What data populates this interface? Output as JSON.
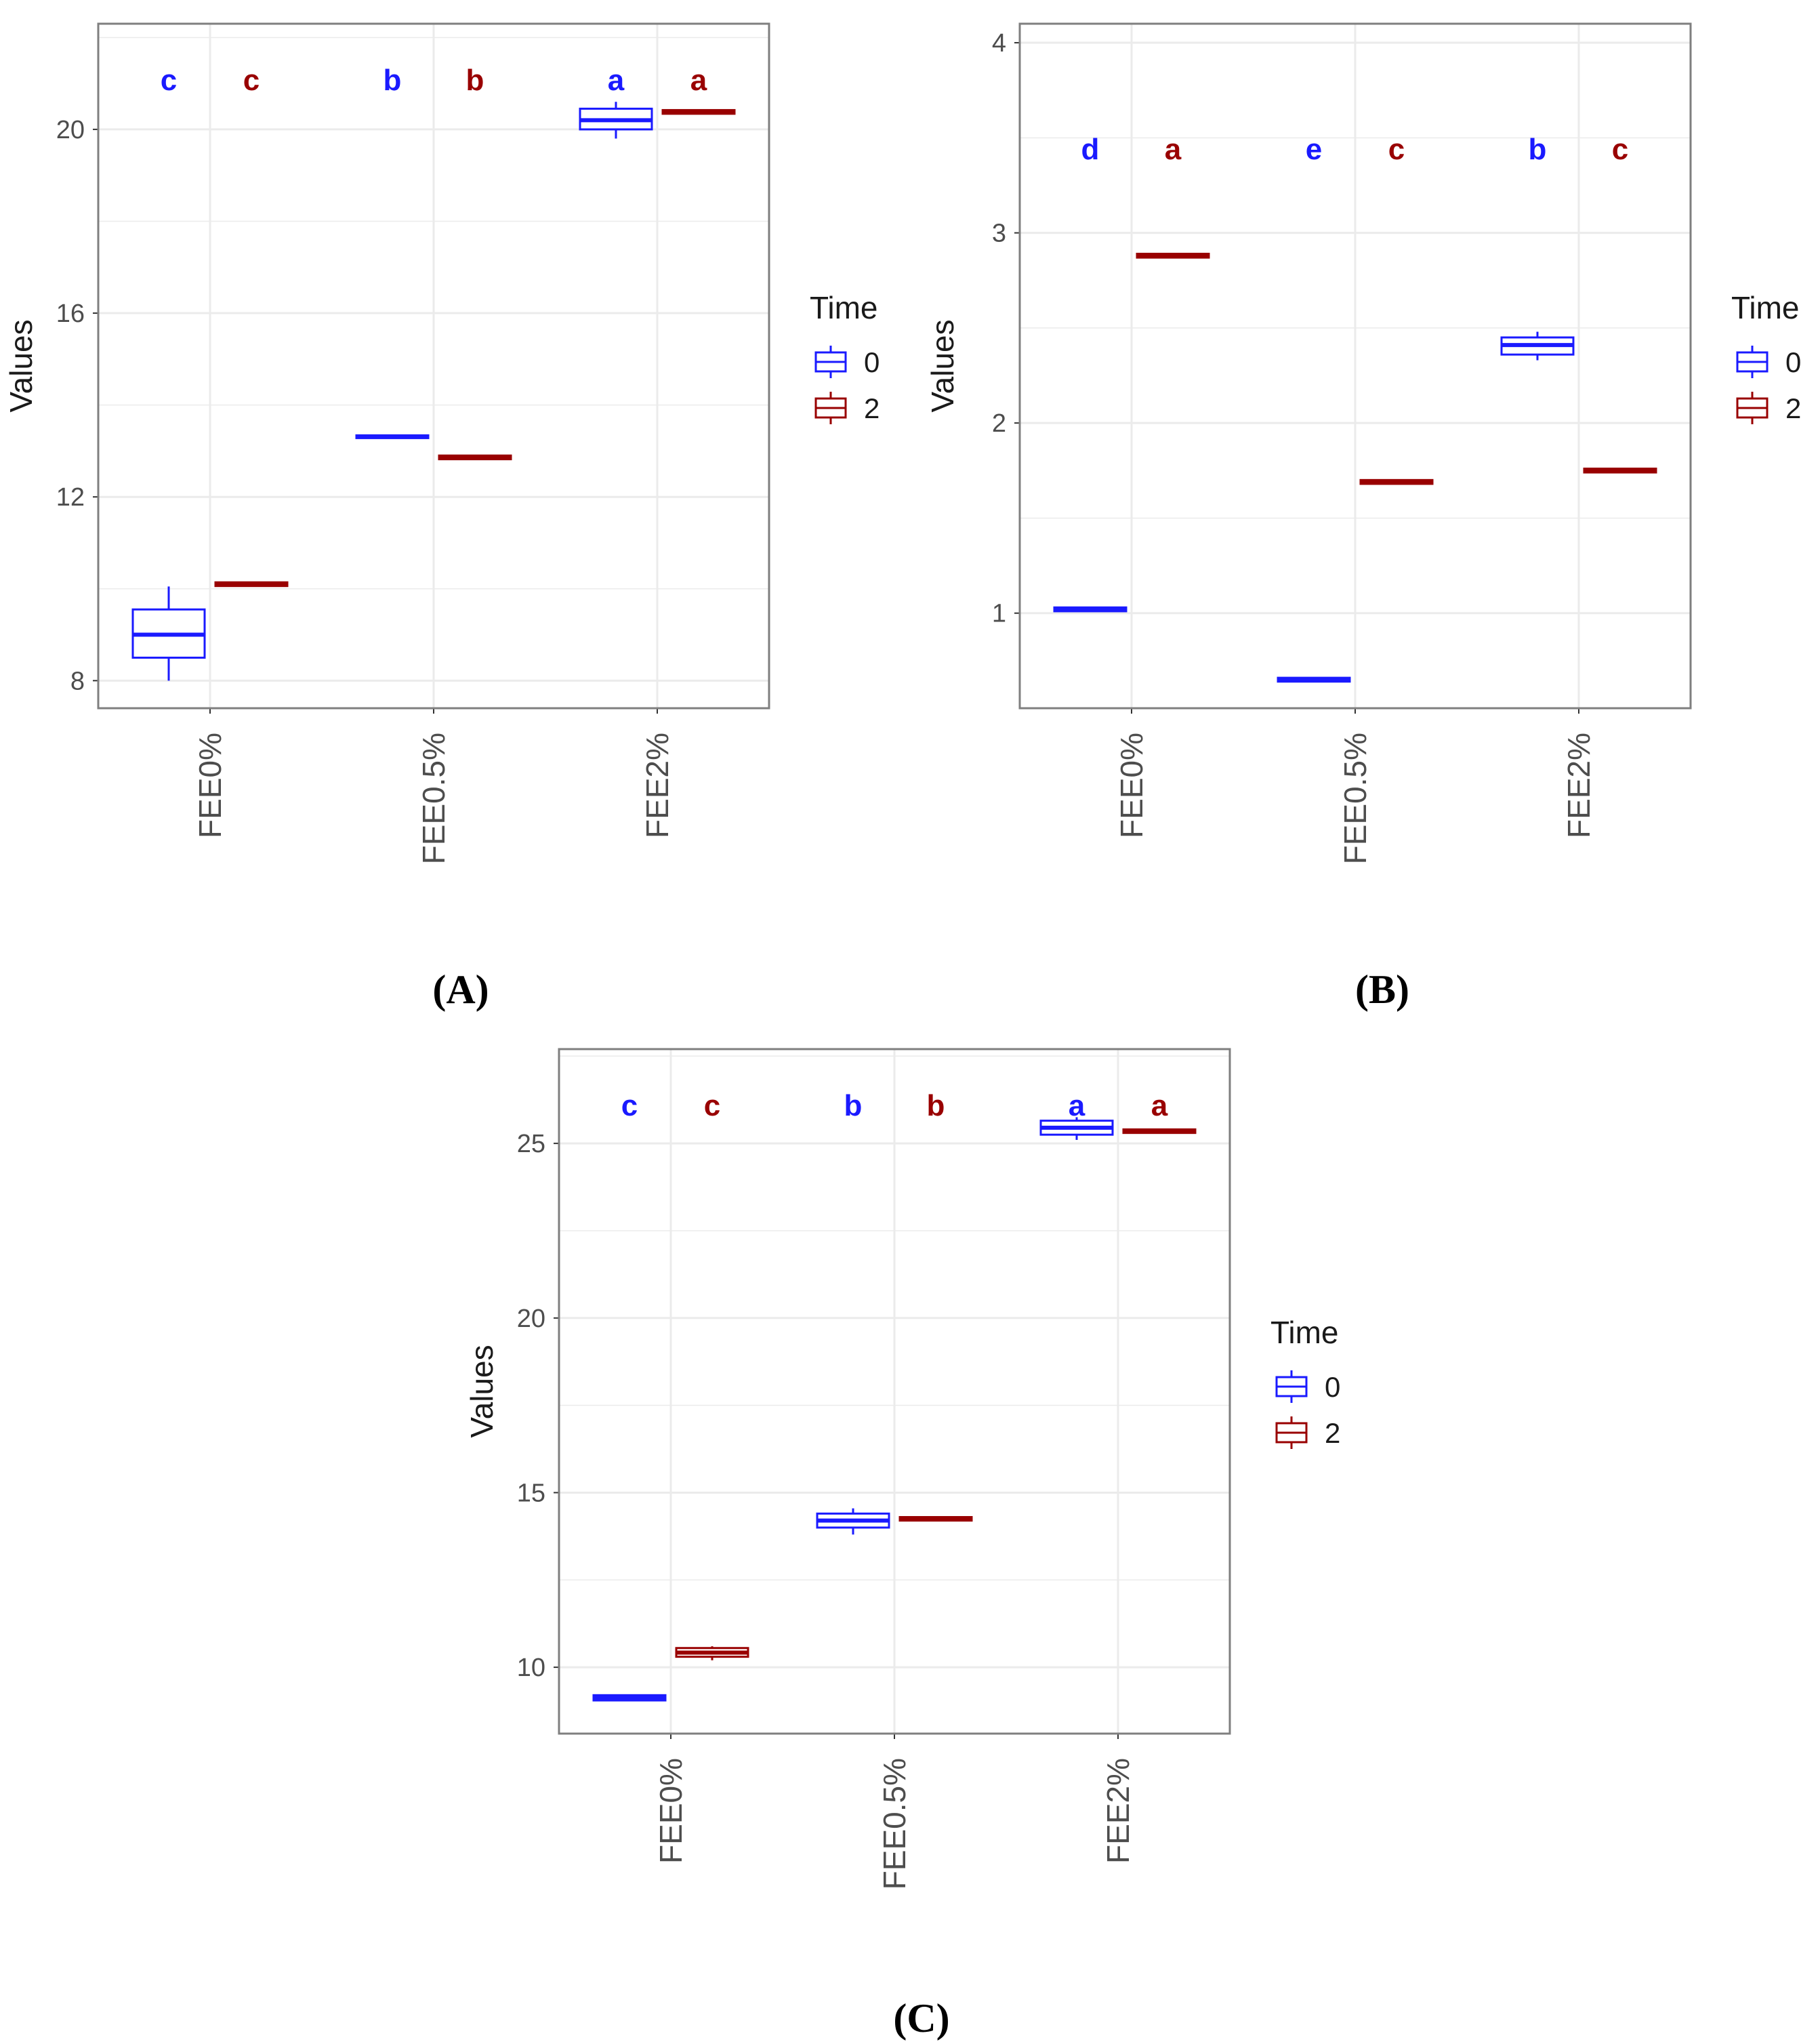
{
  "colors": {
    "time0": "#1a1aff",
    "time2": "#990000",
    "grid": "#ebebeb",
    "panel_border": "#7f7f7f",
    "tick_text": "#4d4d4d"
  },
  "chart_data": [
    {
      "type": "boxplot",
      "caption": "(A)",
      "ylabel": "Values",
      "xlabel": "",
      "categories": [
        "FEE0%",
        "FEE0.5%",
        "FEE2%"
      ],
      "yticks": [
        8,
        12,
        16,
        20
      ],
      "ylim": [
        7.4,
        22.3
      ],
      "legend": {
        "title": "Time",
        "entries": [
          "0",
          "2"
        ],
        "position": "right"
      },
      "series": [
        {
          "name": "0",
          "boxes": [
            {
              "min": 8.0,
              "q1": 8.5,
              "median": 9.0,
              "q3": 9.55,
              "max": 10.05
            },
            {
              "min": 13.28,
              "q1": 13.28,
              "median": 13.31,
              "q3": 13.34,
              "max": 13.34
            },
            {
              "min": 19.8,
              "q1": 20.0,
              "median": 20.2,
              "q3": 20.45,
              "max": 20.6
            }
          ],
          "letters": [
            "c",
            "b",
            "a"
          ]
        },
        {
          "name": "2",
          "boxes": [
            {
              "min": 10.06,
              "q1": 10.06,
              "median": 10.1,
              "q3": 10.14,
              "max": 10.14
            },
            {
              "min": 12.82,
              "q1": 12.82,
              "median": 12.86,
              "q3": 12.9,
              "max": 12.9
            },
            {
              "min": 20.34,
              "q1": 20.34,
              "median": 20.38,
              "q3": 20.42,
              "max": 20.42
            }
          ],
          "letters": [
            "c",
            "b",
            "a"
          ]
        }
      ]
    },
    {
      "type": "boxplot",
      "caption": "(B)",
      "ylabel": "Values",
      "xlabel": "",
      "categories": [
        "FEE0%",
        "FEE0.5%",
        "FEE2%"
      ],
      "yticks": [
        1,
        2,
        3,
        4
      ],
      "ylim": [
        0.5,
        4.1
      ],
      "legend": {
        "title": "Time",
        "entries": [
          "0",
          "2"
        ],
        "position": "right"
      },
      "series": [
        {
          "name": "0",
          "boxes": [
            {
              "min": 1.01,
              "q1": 1.01,
              "median": 1.02,
              "q3": 1.03,
              "max": 1.03
            },
            {
              "min": 0.64,
              "q1": 0.64,
              "median": 0.65,
              "q3": 0.66,
              "max": 0.66
            },
            {
              "min": 2.33,
              "q1": 2.36,
              "median": 2.41,
              "q3": 2.45,
              "max": 2.48
            }
          ],
          "letters": [
            "d",
            "e",
            "b"
          ]
        },
        {
          "name": "2",
          "boxes": [
            {
              "min": 2.87,
              "q1": 2.87,
              "median": 2.88,
              "q3": 2.89,
              "max": 2.89
            },
            {
              "min": 1.68,
              "q1": 1.68,
              "median": 1.69,
              "q3": 1.7,
              "max": 1.7
            },
            {
              "min": 1.74,
              "q1": 1.74,
              "median": 1.75,
              "q3": 1.76,
              "max": 1.76
            }
          ],
          "letters": [
            "a",
            "c",
            "c"
          ]
        }
      ]
    },
    {
      "type": "boxplot",
      "caption": "(C)",
      "ylabel": "Values",
      "xlabel": "",
      "categories": [
        "FEE0%",
        "FEE0.5%",
        "FEE2%"
      ],
      "yticks": [
        10,
        15,
        20,
        25
      ],
      "ylim": [
        8.1,
        27.7
      ],
      "legend": {
        "title": "Time",
        "entries": [
          "0",
          "2"
        ],
        "position": "right"
      },
      "series": [
        {
          "name": "0",
          "boxes": [
            {
              "min": 9.05,
              "q1": 9.05,
              "median": 9.13,
              "q3": 9.2,
              "max": 9.2
            },
            {
              "min": 13.8,
              "q1": 14.0,
              "median": 14.2,
              "q3": 14.4,
              "max": 14.55
            },
            {
              "min": 25.1,
              "q1": 25.25,
              "median": 25.45,
              "q3": 25.65,
              "max": 25.75
            }
          ],
          "letters": [
            "c",
            "b",
            "a"
          ]
        },
        {
          "name": "2",
          "boxes": [
            {
              "min": 10.2,
              "q1": 10.3,
              "median": 10.42,
              "q3": 10.55,
              "max": 10.6
            },
            {
              "min": 14.2,
              "q1": 14.2,
              "median": 14.25,
              "q3": 14.3,
              "max": 14.3
            },
            {
              "min": 25.3,
              "q1": 25.3,
              "median": 25.35,
              "q3": 25.4,
              "max": 25.4
            }
          ],
          "letters": [
            "c",
            "b",
            "a"
          ]
        }
      ]
    }
  ]
}
